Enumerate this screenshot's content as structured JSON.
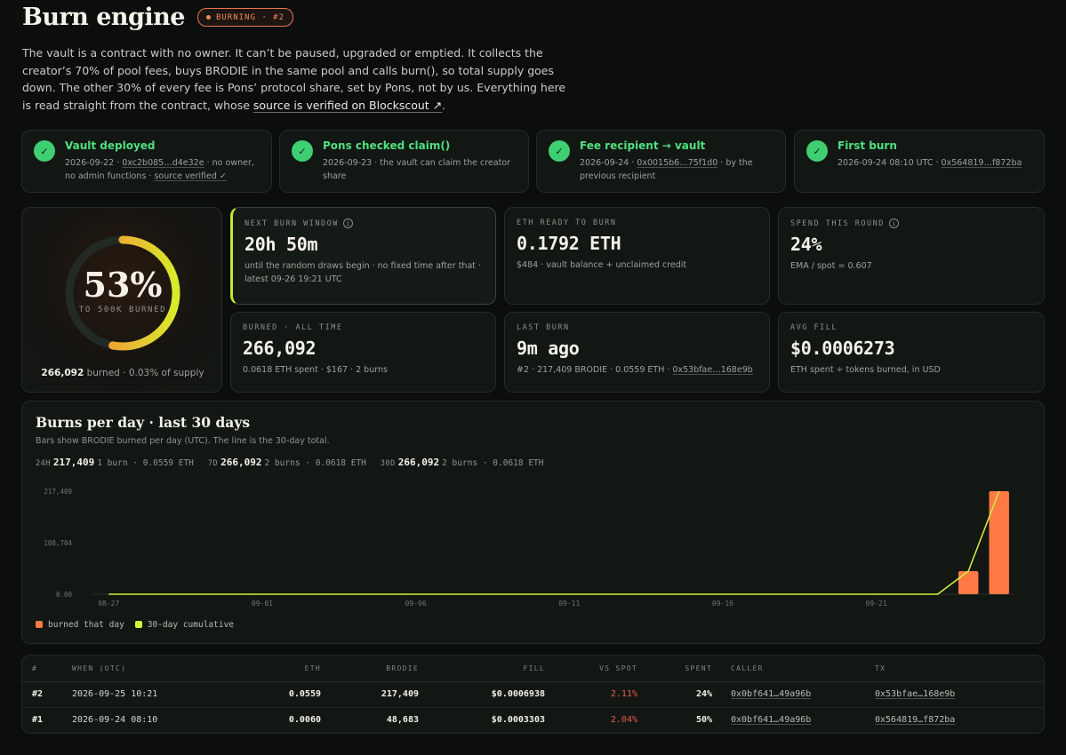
{
  "header": {
    "title": "Burn engine",
    "badge": "BURNING · #2"
  },
  "intro": {
    "text_before": "The vault is a contract with no owner. It can’t be paused, upgraded or emptied. It collects the creator’s 70% of pool fees, buys BRODIE in the same pool and calls burn(), so total supply goes down. The other 30% of every fee is Pons’ protocol share, set by Pons, not by us. Everything here is read straight from the contract, whose ",
    "link": "source is verified on Blockscout ↗",
    "text_after": "."
  },
  "milestones": [
    {
      "title": "Vault deployed",
      "date": "2026-09-22 · ",
      "link": "0xc2b085…d4e32e",
      "desc": " · no owner, no admin functions · ",
      "link2": "source verified ✓"
    },
    {
      "title": "Pons checked claim()",
      "date": "2026-09-23 · ",
      "desc": "the vault can claim the creator share"
    },
    {
      "title": "Fee recipient → vault",
      "date": "2026-09-24 · ",
      "link": "0x0015b6…75f1d0",
      "desc": " · by the previous recipient"
    },
    {
      "title": "First burn",
      "date": "2026-09-24 08:10 UTC · ",
      "link": "0x564819…f872ba"
    }
  ],
  "progress": {
    "percent_text": "53%",
    "fraction": 0.53,
    "label": "TO 500K BURNED",
    "burned": "266,092",
    "foot": " burned · 0.03% of supply"
  },
  "stats": {
    "next_burn": {
      "label": "NEXT BURN WINDOW",
      "value": "20h 50m",
      "sub1": "until the random draws begin · no fixed time after that ·",
      "sub2": "latest 09-26 19:21 UTC"
    },
    "eth_ready": {
      "label": "ETH READY TO BURN",
      "value": "0.1792 ETH",
      "sub": "$484 · vault balance + unclaimed credit"
    },
    "spend_round": {
      "label": "SPEND THIS ROUND",
      "value": "24%",
      "sub": "EMA / spot = 0.607"
    },
    "burned_all": {
      "label": "BURNED · ALL TIME",
      "value": "266,092",
      "sub": "0.0618 ETH spent · $167 · 2 burns"
    },
    "last_burn": {
      "label": "LAST BURN",
      "value": "9m ago",
      "sub": "#2 · 217,409 BRODIE · 0.0559 ETH · ",
      "link": "0x53bfae…168e9b"
    },
    "avg_fill": {
      "label": "AVG FILL",
      "value": "$0.0006273",
      "sub": "ETH spent ÷ tokens burned, in USD"
    }
  },
  "chart_section": {
    "title": "Burns per day · last 30 days",
    "subtitle": "Bars show BRODIE burned per day (UTC). The line is the 30-day total.",
    "summaries": [
      {
        "key": "24H",
        "value": "217,409",
        "detail": "1 burn · 0.0559 ETH"
      },
      {
        "key": "7D",
        "value": "266,092",
        "detail": "2 burns · 0.0618 ETH"
      },
      {
        "key": "30D",
        "value": "266,092",
        "detail": "2 burns · 0.0618 ETH"
      }
    ],
    "legend": [
      "burned that day",
      "30-day cumulative"
    ]
  },
  "chart_data": {
    "type": "bar",
    "title": "Burns per day · last 30 days",
    "x_start": "08-27",
    "x_ticks": [
      "08-27",
      "09-01",
      "09-06",
      "09-11",
      "09-16",
      "09-21"
    ],
    "y_ticks": [
      "217,409",
      "108,704",
      "0.00"
    ],
    "ylim": [
      0,
      217409
    ],
    "series": [
      {
        "name": "burned that day",
        "type": "bar",
        "color": "#ff7a45",
        "points": [
          {
            "x": "09-24",
            "y": 48683
          },
          {
            "x": "09-25",
            "y": 217409
          }
        ]
      },
      {
        "name": "30-day cumulative",
        "type": "line",
        "color": "#d4f23a",
        "points": [
          {
            "x": "08-27",
            "y": 0
          },
          {
            "x": "09-23",
            "y": 0
          },
          {
            "x": "09-24",
            "y": 48683
          },
          {
            "x": "09-25",
            "y": 266092
          }
        ]
      }
    ]
  },
  "table": {
    "headers": [
      "#",
      "WHEN (UTC)",
      "ETH",
      "BRODIE",
      "FILL",
      "VS SPOT",
      "SPENT",
      "CALLER",
      "TX"
    ],
    "rows": [
      {
        "id": "#2",
        "when": "2026-09-25 10:21",
        "eth": "0.0559",
        "brodie": "217,409",
        "fill": "$0.0006938",
        "vs_spot": "2.11%",
        "spent": "24%",
        "caller": "0x0bf641…49a96b",
        "tx": "0x53bfae…168e9b"
      },
      {
        "id": "#1",
        "when": "2026-09-24 08:10",
        "eth": "0.0060",
        "brodie": "48,683",
        "fill": "$0.0003303",
        "vs_spot": "2.04%",
        "spent": "50%",
        "caller": "0x0bf641…49a96b",
        "tx": "0x564819…f872ba"
      }
    ]
  }
}
